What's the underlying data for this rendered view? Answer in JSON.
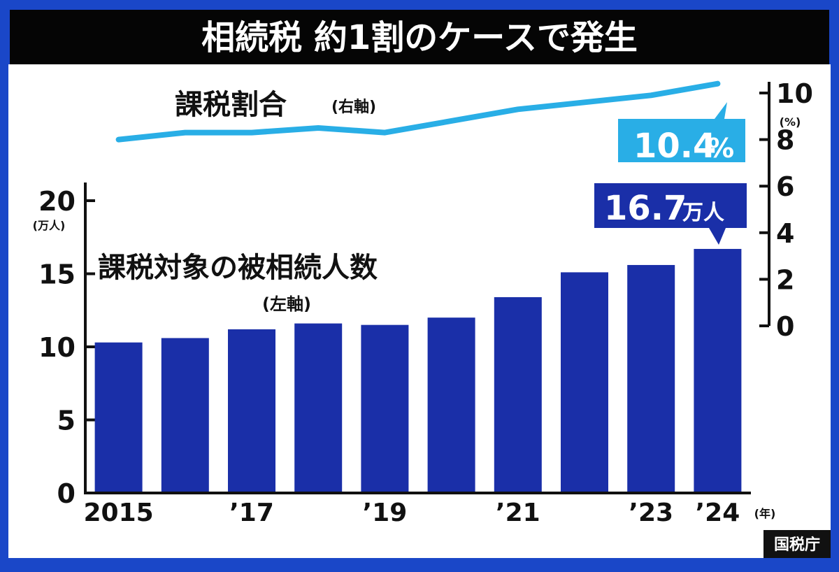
{
  "header": {
    "title": "相続税 約1割のケースで発生"
  },
  "source": "国税庁",
  "colors": {
    "frame": "#1a47c8",
    "header_bg": "#050505",
    "header_text": "#ffffff",
    "bar": "#1a2fa8",
    "line": "#29aee6",
    "axis": "#111111",
    "text": "#111111"
  },
  "chart_data": {
    "type": "bar+line",
    "categories": [
      "2015",
      "2016",
      "2017",
      "2018",
      "2019",
      "2020",
      "2021",
      "2022",
      "2023",
      "2024"
    ],
    "x_tick_labels": [
      "2015",
      "",
      "’17",
      "",
      "’19",
      "",
      "’21",
      "",
      "’23",
      "’24"
    ],
    "x_unit": "(年)",
    "series": [
      {
        "name": "課税対象の被相続人数",
        "name_sub": "(左軸)",
        "type": "bar",
        "axis": "left",
        "values": [
          10.3,
          10.6,
          11.2,
          11.6,
          11.5,
          12.0,
          13.4,
          15.1,
          15.6,
          16.7
        ]
      },
      {
        "name": "課税割合",
        "name_sub": "(右軸)",
        "type": "line",
        "axis": "right",
        "values": [
          8.0,
          8.3,
          8.3,
          8.5,
          8.3,
          8.8,
          9.3,
          9.6,
          9.9,
          10.4
        ]
      }
    ],
    "left_axis": {
      "min": 0,
      "max": 20,
      "ticks": [
        0,
        5,
        10,
        15,
        20
      ],
      "unit": "(万人)"
    },
    "right_axis": {
      "min": 0,
      "max": 10,
      "ticks": [
        0,
        2,
        4,
        6,
        8,
        10
      ],
      "unit": "(%)"
    },
    "callouts": {
      "rate": {
        "value": "10.4",
        "unit": "%"
      },
      "count": {
        "value": "16.7",
        "unit": "万人"
      }
    },
    "grid": false,
    "legend": "none"
  }
}
